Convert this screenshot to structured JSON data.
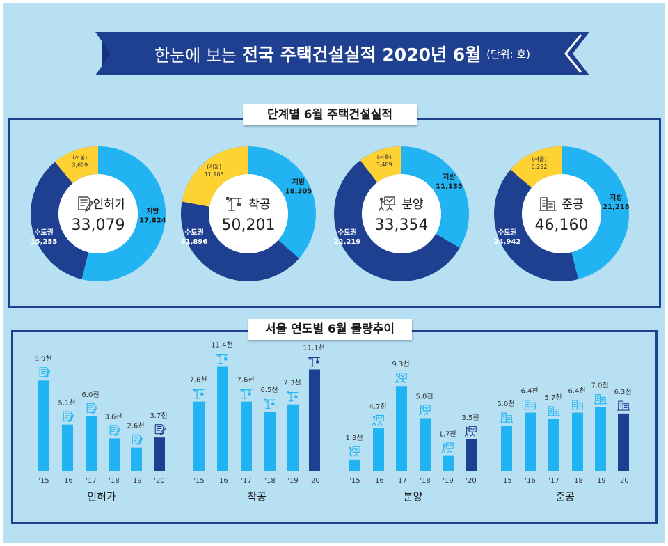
{
  "banner": {
    "prefix": "한눈에 보는",
    "title": "전국 주택건설실적 2020년 6월",
    "unit": "(단위: 호)"
  },
  "section1": {
    "title": "단계별 6월 주택건설실적"
  },
  "section2": {
    "title": "서울 연도별 6월 물량추이"
  },
  "colors": {
    "background": "#b7e0f2",
    "navy": "#1f3f91",
    "region": "#22b4f2",
    "seoul": "#ffd234",
    "bar": "#22b4f2",
    "bar_current": "#1f3f91"
  },
  "chart_data": [
    {
      "type": "pie",
      "title": "인허가",
      "total": "33,079",
      "icon": "document-icon",
      "slices": [
        {
          "label": "(서울)",
          "value": 3659,
          "display": "3,659"
        },
        {
          "label": "지방",
          "value": 17824,
          "display": "17,824"
        },
        {
          "label": "수도권",
          "value": 15255,
          "display": "15,255"
        }
      ]
    },
    {
      "type": "pie",
      "title": "착공",
      "total": "50,201",
      "icon": "crane-icon",
      "slices": [
        {
          "label": "(서울)",
          "value": 11103,
          "display": "11,103"
        },
        {
          "label": "지방",
          "value": 18305,
          "display": "18,305"
        },
        {
          "label": "수도권",
          "value": 31896,
          "display": "31,896"
        }
      ]
    },
    {
      "type": "pie",
      "title": "분양",
      "total": "33,354",
      "icon": "presentation-icon",
      "slices": [
        {
          "label": "(서울)",
          "value": 3489,
          "display": "3,489"
        },
        {
          "label": "지방",
          "value": 11135,
          "display": "11,135"
        },
        {
          "label": "수도권",
          "value": 22219,
          "display": "22,219"
        }
      ]
    },
    {
      "type": "pie",
      "title": "준공",
      "total": "46,160",
      "icon": "building-icon",
      "slices": [
        {
          "label": "(서울)",
          "value": 6292,
          "display": "6,292"
        },
        {
          "label": "지방",
          "value": 21218,
          "display": "21,218"
        },
        {
          "label": "수도권",
          "value": 24942,
          "display": "24,942"
        }
      ]
    },
    {
      "type": "bar",
      "title": "인허가",
      "icon": "document-icon",
      "categories": [
        "'15",
        "'16",
        "'17",
        "'18",
        "'19",
        "'20"
      ],
      "values": [
        9.9,
        5.1,
        6.0,
        3.6,
        2.6,
        3.7
      ],
      "labels": [
        "9.9천",
        "5.1천",
        "6.0천",
        "3.6천",
        "2.6천",
        "3.7천"
      ]
    },
    {
      "type": "bar",
      "title": "착공",
      "icon": "crane-icon",
      "categories": [
        "'15",
        "'16",
        "'17",
        "'18",
        "'19",
        "'20"
      ],
      "values": [
        7.6,
        11.4,
        7.6,
        6.5,
        7.3,
        11.1
      ],
      "labels": [
        "7.6천",
        "11.4천",
        "7.6천",
        "6.5천",
        "7.3천",
        "11.1천"
      ]
    },
    {
      "type": "bar",
      "title": "분양",
      "icon": "presentation-icon",
      "categories": [
        "'15",
        "'16",
        "'17",
        "'18",
        "'19",
        "'20"
      ],
      "values": [
        1.3,
        4.7,
        9.3,
        5.8,
        1.7,
        3.5
      ],
      "labels": [
        "1.3천",
        "4.7천",
        "9.3천",
        "5.8천",
        "1.7천",
        "3.5천"
      ]
    },
    {
      "type": "bar",
      "title": "준공",
      "icon": "building-icon",
      "categories": [
        "'15",
        "'16",
        "'17",
        "'18",
        "'19",
        "'20"
      ],
      "values": [
        5.0,
        6.4,
        5.7,
        6.4,
        7.0,
        6.3
      ],
      "labels": [
        "5.0천",
        "6.4천",
        "5.7천",
        "6.4천",
        "7.0천",
        "6.3천"
      ]
    }
  ]
}
